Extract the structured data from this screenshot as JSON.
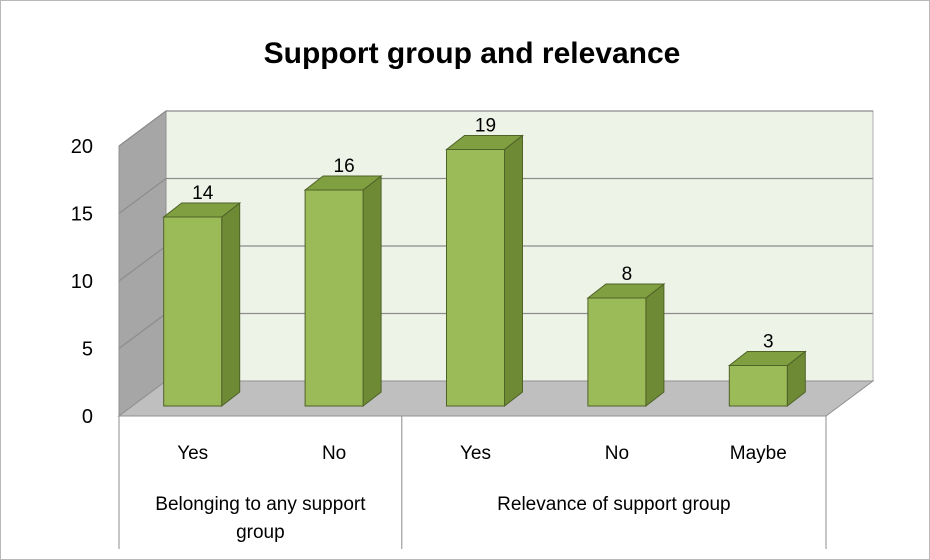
{
  "chart_data": {
    "type": "bar",
    "title": "Support group and relevance",
    "categories": [
      "Yes",
      "No",
      "Yes",
      "No",
      "Maybe"
    ],
    "groups": [
      {
        "label_lines": [
          "Belonging to any support",
          "group"
        ],
        "categories": [
          0,
          1
        ]
      },
      {
        "label_lines": [
          "Relevance of support group"
        ],
        "categories": [
          2,
          3,
          4
        ]
      }
    ],
    "values": [
      14,
      16,
      19,
      8,
      3
    ],
    "data_labels": [
      "14",
      "16",
      "19",
      "8",
      "3"
    ],
    "ylim": [
      0,
      20
    ],
    "yticks": [
      0,
      5,
      10,
      15,
      20
    ],
    "ytick_labels": [
      "0",
      "5",
      "10",
      "15",
      "20"
    ],
    "xlabel": "",
    "ylabel": "",
    "grid": true,
    "legend": "none",
    "colors": {
      "bar_front": "#9bbb59",
      "bar_side": "#6e8a35",
      "bar_top": "#7f9f40",
      "bar_stroke": "#4f6228",
      "back_wall": "#eef3e8",
      "side_wall": "#a6a6a6",
      "floor": "#bfbfbf",
      "grid": "#8c8c8c"
    }
  }
}
